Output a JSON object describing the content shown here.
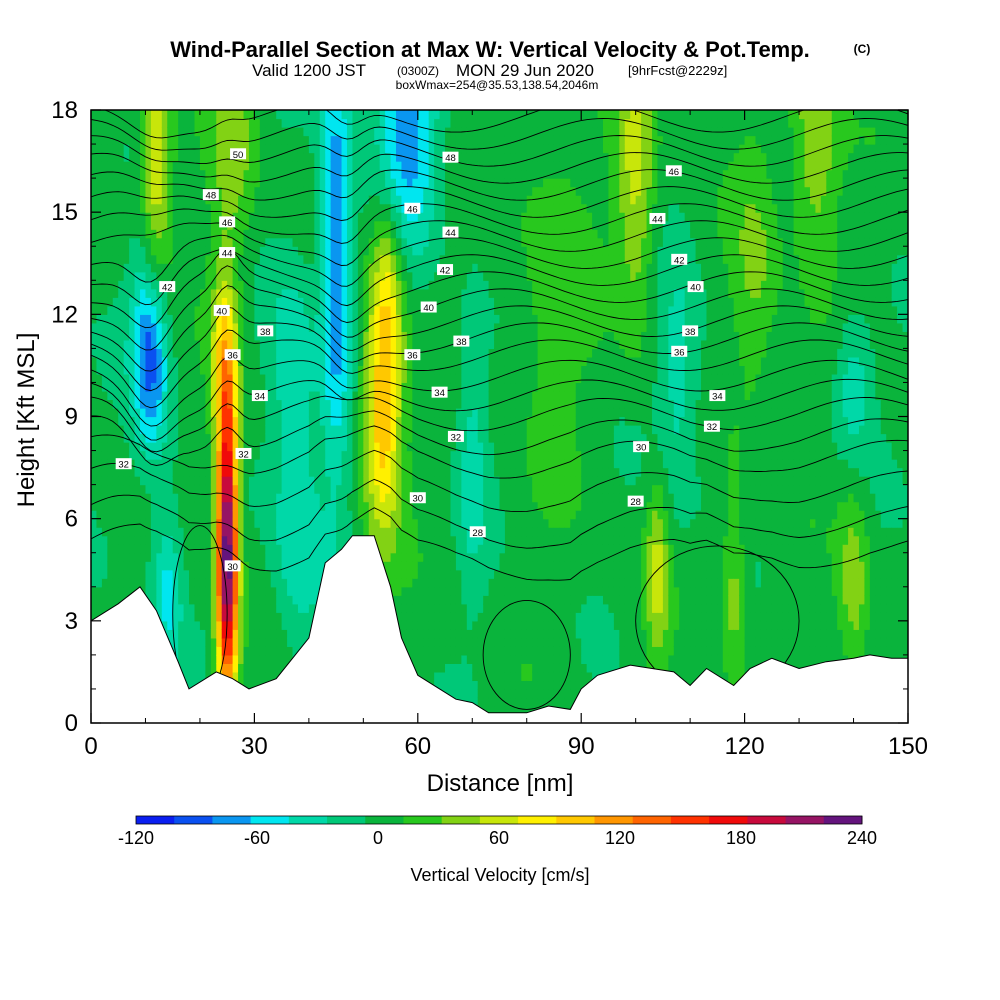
{
  "chart_data": {
    "type": "contour-section",
    "title": "Wind-Parallel Section at Max W: Vertical Velocity & Pot.Temp.",
    "title_mark": "(C)",
    "subtitle": {
      "valid_prefix": "Valid 1200 JST",
      "zulu": "(0300Z)",
      "date": "MON 29 Jun 2020",
      "forecast": "[9hrFcst@2229z]"
    },
    "box_text": "boxWmax=254@35.53,138.54,2046m",
    "xlabel": "Distance [nm]",
    "ylabel": "Height [Kft MSL]",
    "xlim": [
      0,
      150
    ],
    "ylim": [
      0,
      18
    ],
    "x_ticks": [
      "0",
      "30",
      "60",
      "90",
      "120",
      "150"
    ],
    "y_ticks": [
      "0",
      "3",
      "6",
      "9",
      "12",
      "15",
      "18"
    ],
    "colorbar": {
      "label": "Vertical Velocity [cm/s]",
      "tick_labels": [
        "-120",
        "-60",
        "0",
        "60",
        "120",
        "180",
        "240"
      ],
      "levels": [
        -120,
        -100,
        -80,
        -60,
        -40,
        -20,
        0,
        20,
        40,
        60,
        80,
        100,
        120,
        140,
        160,
        180,
        200,
        220,
        240
      ],
      "colors": [
        "#0a1ef0",
        "#0a50f0",
        "#0a96f0",
        "#00e6f0",
        "#00d8a8",
        "#00c878",
        "#0ab43c",
        "#28c81e",
        "#82d214",
        "#c8e60a",
        "#fff000",
        "#ffc800",
        "#ff9600",
        "#ff6400",
        "#ff3200",
        "#f00a0a",
        "#c80a3c",
        "#961464",
        "#64147d"
      ]
    },
    "terrain_kft": [
      [
        0,
        3.0
      ],
      [
        5,
        3.5
      ],
      [
        9,
        4.0
      ],
      [
        12,
        3.3
      ],
      [
        16,
        1.8
      ],
      [
        18,
        1.0
      ],
      [
        23,
        1.5
      ],
      [
        26,
        1.3
      ],
      [
        29,
        1.0
      ],
      [
        34,
        1.3
      ],
      [
        40,
        2.5
      ],
      [
        43,
        4.7
      ],
      [
        46,
        5.1
      ],
      [
        48,
        5.5
      ],
      [
        52,
        5.5
      ],
      [
        55,
        4.0
      ],
      [
        57,
        2.5
      ],
      [
        60,
        1.4
      ],
      [
        64,
        1.0
      ],
      [
        67,
        0.7
      ],
      [
        70,
        0.6
      ],
      [
        73,
        0.3
      ],
      [
        76,
        0.3
      ],
      [
        80,
        0.3
      ],
      [
        84,
        0.5
      ],
      [
        88,
        0.4
      ],
      [
        90,
        1.0
      ],
      [
        93,
        1.4
      ],
      [
        99,
        1.7
      ],
      [
        103,
        1.6
      ],
      [
        107,
        1.5
      ],
      [
        110,
        1.1
      ],
      [
        113,
        1.6
      ],
      [
        118,
        1.1
      ],
      [
        121,
        1.6
      ],
      [
        125,
        1.9
      ],
      [
        130,
        1.6
      ],
      [
        135,
        1.8
      ],
      [
        140,
        1.9
      ],
      [
        143,
        2.0
      ],
      [
        147,
        1.9
      ],
      [
        150,
        1.9
      ]
    ],
    "w_features": [
      {
        "x": 25,
        "h": 5.0,
        "sx": 1.4,
        "sy": 3.2,
        "w": 250
      },
      {
        "x": 24.5,
        "h": 10.5,
        "sx": 1.8,
        "sy": 2.0,
        "w": 80
      },
      {
        "x": 11,
        "h": 11.0,
        "sx": 2.4,
        "sy": 2.2,
        "w": -110
      },
      {
        "x": 45,
        "h": 14.0,
        "sx": 2.0,
        "sy": 4.5,
        "w": -90
      },
      {
        "x": 53.5,
        "h": 9.0,
        "sx": 2.5,
        "sy": 2.5,
        "w": 110
      },
      {
        "x": 54.5,
        "h": 13.0,
        "sx": 2.0,
        "sy": 2.0,
        "w": 60
      },
      {
        "x": 14,
        "h": 4.0,
        "sx": 2.0,
        "sy": 1.8,
        "w": -55
      },
      {
        "x": 38,
        "h": 5.5,
        "sx": 3.5,
        "sy": 2.5,
        "w": -45
      },
      {
        "x": 58,
        "h": 17.5,
        "sx": 4.0,
        "sy": 2.5,
        "w": -80
      },
      {
        "x": 12,
        "h": 16.0,
        "sx": 2.0,
        "sy": 3.0,
        "w": 80
      },
      {
        "x": 26,
        "h": 17.0,
        "sx": 3.0,
        "sy": 2.5,
        "w": 40
      },
      {
        "x": 100,
        "h": 16.0,
        "sx": 2.5,
        "sy": 3.0,
        "w": 60
      },
      {
        "x": 108,
        "h": 10.0,
        "sx": 3.0,
        "sy": 2.5,
        "w": -40
      },
      {
        "x": 140,
        "h": 10.0,
        "sx": 2.5,
        "sy": 1.5,
        "w": -45
      },
      {
        "x": 133,
        "h": 17.0,
        "sx": 3.0,
        "sy": 2.5,
        "w": 55
      },
      {
        "x": 104,
        "h": 4.5,
        "sx": 1.5,
        "sy": 2.0,
        "w": 55
      },
      {
        "x": 118,
        "h": 4.0,
        "sx": 1.5,
        "sy": 2.0,
        "w": 45
      },
      {
        "x": 140,
        "h": 4.0,
        "sx": 2.0,
        "sy": 2.0,
        "w": 45
      },
      {
        "x": 85,
        "h": 13.0,
        "sx": 5.0,
        "sy": 4.0,
        "w": 25
      },
      {
        "x": 70,
        "h": 8.0,
        "sx": 2.0,
        "sy": 3.0,
        "w": -35
      },
      {
        "x": 37,
        "h": 10.5,
        "sx": 3.0,
        "sy": 2.0,
        "w": -45
      },
      {
        "x": 122,
        "h": 13.0,
        "sx": 3.0,
        "sy": 3.0,
        "w": 35
      }
    ],
    "theta_contour_labels": [
      {
        "text": "50",
        "x": 27,
        "h": 16.7
      },
      {
        "text": "48",
        "x": 22,
        "h": 15.5
      },
      {
        "text": "46",
        "x": 25,
        "h": 14.7
      },
      {
        "text": "44",
        "x": 25,
        "h": 13.8
      },
      {
        "text": "42",
        "x": 14,
        "h": 12.8
      },
      {
        "text": "40",
        "x": 24,
        "h": 12.1
      },
      {
        "text": "38",
        "x": 32,
        "h": 11.5
      },
      {
        "text": "36",
        "x": 26,
        "h": 10.8
      },
      {
        "text": "34",
        "x": 31,
        "h": 9.6
      },
      {
        "text": "32",
        "x": 28,
        "h": 7.9
      },
      {
        "text": "32",
        "x": 6,
        "h": 7.6
      },
      {
        "text": "30",
        "x": 26,
        "h": 4.6
      },
      {
        "text": "48",
        "x": 66,
        "h": 16.6
      },
      {
        "text": "46",
        "x": 59,
        "h": 15.1
      },
      {
        "text": "44",
        "x": 66,
        "h": 14.4
      },
      {
        "text": "42",
        "x": 65,
        "h": 13.3
      },
      {
        "text": "40",
        "x": 62,
        "h": 12.2
      },
      {
        "text": "38",
        "x": 68,
        "h": 11.2
      },
      {
        "text": "36",
        "x": 59,
        "h": 10.8
      },
      {
        "text": "34",
        "x": 64,
        "h": 9.7
      },
      {
        "text": "32",
        "x": 67,
        "h": 8.4
      },
      {
        "text": "30",
        "x": 60,
        "h": 6.6
      },
      {
        "text": "28",
        "x": 71,
        "h": 5.6
      },
      {
        "text": "46",
        "x": 107,
        "h": 16.2
      },
      {
        "text": "44",
        "x": 104,
        "h": 14.8
      },
      {
        "text": "42",
        "x": 108,
        "h": 13.6
      },
      {
        "text": "40",
        "x": 111,
        "h": 12.8
      },
      {
        "text": "38",
        "x": 110,
        "h": 11.5
      },
      {
        "text": "36",
        "x": 108,
        "h": 10.9
      },
      {
        "text": "34",
        "x": 115,
        "h": 9.6
      },
      {
        "text": "32",
        "x": 114,
        "h": 8.7
      },
      {
        "text": "30",
        "x": 101,
        "h": 8.1
      },
      {
        "text": "28",
        "x": 100,
        "h": 6.5
      }
    ]
  }
}
